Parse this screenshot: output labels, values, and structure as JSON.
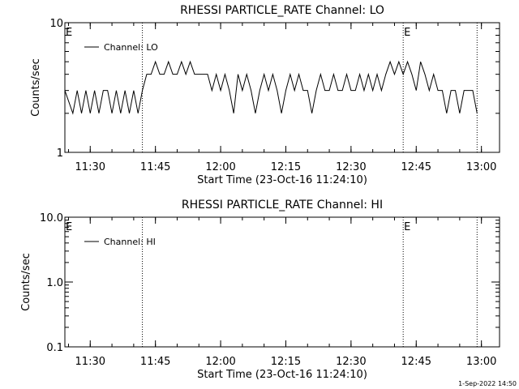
{
  "footer": "1-Sep-2022 14:50",
  "chart_data": [
    {
      "type": "line",
      "title": "RHESSI PARTICLE_RATE Channel: LO",
      "xlabel": "Start Time (23-Oct-16 11:24:10)",
      "ylabel": "Counts/sec",
      "y_scale": "log",
      "xlim": [
        "11:24:10",
        "13:04:10"
      ],
      "ylim": [
        1,
        10
      ],
      "x_ticks": [
        "11:30",
        "11:45",
        "12:00",
        "12:15",
        "12:30",
        "12:45",
        "13:00"
      ],
      "y_ticks": [
        "1",
        "10"
      ],
      "vlines": [
        "11:42",
        "12:42",
        "12:59"
      ],
      "markers": [
        {
          "x": "11:24:10",
          "label": "E"
        },
        {
          "x": "12:42",
          "label": "E"
        }
      ],
      "legend": "Channel: LO",
      "series": [
        {
          "name": "Channel: LO",
          "x": [
            "11:24:10",
            "11:26",
            "11:27",
            "11:28",
            "11:29",
            "11:30",
            "11:31",
            "11:32",
            "11:33",
            "11:34",
            "11:35",
            "11:36",
            "11:37",
            "11:38",
            "11:39",
            "11:40",
            "11:41",
            "11:42",
            "11:43",
            "11:44",
            "11:45",
            "11:46",
            "11:47",
            "11:48",
            "11:49",
            "11:50",
            "11:51",
            "11:52",
            "11:53",
            "11:54",
            "11:55",
            "11:56",
            "11:57",
            "11:58",
            "11:59",
            "12:00",
            "12:01",
            "12:02",
            "12:03",
            "12:04",
            "12:05",
            "12:06",
            "12:07",
            "12:08",
            "12:09",
            "12:10",
            "12:11",
            "12:12",
            "12:13",
            "12:14",
            "12:15",
            "12:16",
            "12:17",
            "12:18",
            "12:19",
            "12:20",
            "12:21",
            "12:22",
            "12:23",
            "12:24",
            "12:25",
            "12:26",
            "12:27",
            "12:28",
            "12:29",
            "12:30",
            "12:31",
            "12:32",
            "12:33",
            "12:34",
            "12:35",
            "12:36",
            "12:37",
            "12:38",
            "12:39",
            "12:40",
            "12:41",
            "12:42",
            "12:43",
            "12:44",
            "12:45",
            "12:46",
            "12:47",
            "12:48",
            "12:49",
            "12:50",
            "12:51",
            "12:52",
            "12:53",
            "12:54",
            "12:55",
            "12:56",
            "12:57",
            "12:58",
            "12:59"
          ],
          "y": [
            3,
            2,
            3,
            2,
            3,
            2,
            3,
            2,
            3,
            3,
            2,
            3,
            2,
            3,
            2,
            3,
            2,
            3,
            4,
            4,
            5,
            4,
            4,
            5,
            4,
            4,
            5,
            4,
            5,
            4,
            4,
            4,
            4,
            3,
            4,
            3,
            4,
            3,
            2,
            4,
            3,
            4,
            3,
            2,
            3,
            4,
            3,
            4,
            3,
            2,
            3,
            4,
            3,
            4,
            3,
            3,
            2,
            3,
            4,
            3,
            3,
            4,
            3,
            3,
            4,
            3,
            3,
            4,
            3,
            4,
            3,
            4,
            3,
            4,
            5,
            4,
            5,
            4,
            5,
            4,
            3,
            5,
            4,
            3,
            4,
            3,
            3,
            2,
            3,
            3,
            2,
            3,
            3,
            3,
            2
          ]
        }
      ]
    },
    {
      "type": "line",
      "title": "RHESSI PARTICLE_RATE Channel: HI",
      "xlabel": "Start Time (23-Oct-16 11:24:10)",
      "ylabel": "Counts/sec",
      "y_scale": "log",
      "xlim": [
        "11:24:10",
        "13:04:10"
      ],
      "ylim": [
        0.1,
        10
      ],
      "x_ticks": [
        "11:30",
        "11:45",
        "12:00",
        "12:15",
        "12:30",
        "12:45",
        "13:00"
      ],
      "y_ticks": [
        "0.1",
        "1.0",
        "10.0"
      ],
      "vlines": [
        "11:42",
        "12:42",
        "12:59"
      ],
      "markers": [
        {
          "x": "11:24:10",
          "label": "E"
        },
        {
          "x": "12:42",
          "label": "E"
        }
      ],
      "legend": "Channel: HI",
      "series": [
        {
          "name": "Channel: HI",
          "x": [],
          "y": []
        }
      ]
    }
  ]
}
